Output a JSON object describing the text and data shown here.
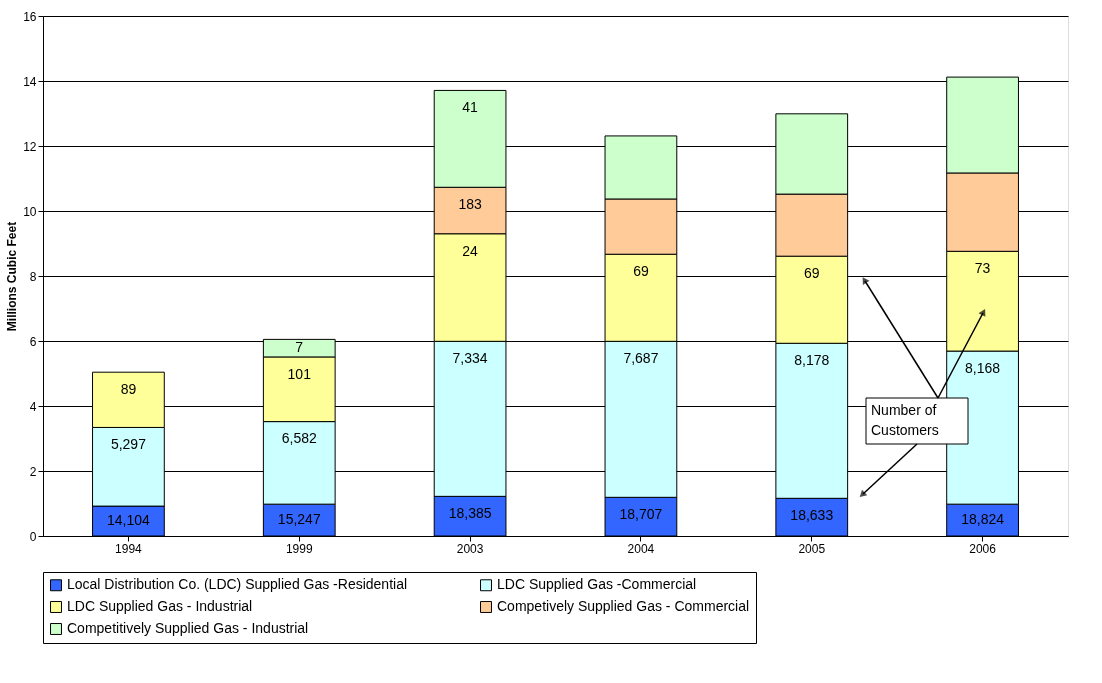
{
  "chart_data": {
    "type": "bar",
    "stacked": true,
    "ylabel": "Millions Cubic Feet",
    "categories": [
      "1994",
      "1999",
      "2003",
      "2004",
      "2005",
      "2006"
    ],
    "ylim": [
      0,
      16
    ],
    "yticks": [
      0,
      2,
      4,
      6,
      8,
      10,
      12,
      14,
      16
    ],
    "grid": "y",
    "legend": "bottom",
    "annotations": [
      "Number of Customers",
      {
        "text": "14,104",
        "x": "1994",
        "y": 0.92
      },
      {
        "text": "15,247",
        "x": "1999",
        "y": 0.98
      },
      {
        "text": "18,385",
        "x": "2003",
        "y": 1.22
      },
      {
        "text": "18,707",
        "x": "2004",
        "y": 1.19
      },
      {
        "text": "18,633",
        "x": "2005",
        "y": 1.16
      },
      {
        "text": "18,824",
        "x": "2006",
        "y": 0.98
      },
      {
        "text": "5,297",
        "x": "1994",
        "y": 3.34
      },
      {
        "text": "6,582",
        "x": "1999",
        "y": 3.52
      },
      {
        "text": "7,334",
        "x": "2003",
        "y": 5.99
      },
      {
        "text": "7,687",
        "x": "2004",
        "y": 5.99
      },
      {
        "text": "8,178",
        "x": "2005",
        "y": 5.93
      },
      {
        "text": "8,168",
        "x": "2006",
        "y": 5.69
      },
      {
        "text": "89",
        "x": "1994",
        "y": 5.04
      },
      {
        "text": "101",
        "x": "1999",
        "y": 5.51
      },
      {
        "text": "24",
        "x": "2003",
        "y": 9.3
      },
      {
        "text": "69",
        "x": "2004",
        "y": 8.67
      },
      {
        "text": "69",
        "x": "2005",
        "y": 8.61
      },
      {
        "text": "73",
        "x": "2006",
        "y": 8.76
      },
      {
        "text": "183",
        "x": "2003",
        "y": 10.73
      },
      {
        "text": "7",
        "x": "1999",
        "y": 6.05
      },
      {
        "text": "41",
        "x": "2003",
        "y": 13.71
      }
    ],
    "series": [
      {
        "name": "Local Distribution Co. (LDC) Supplied Gas -Residential",
        "color": "#3366ff",
        "values": [
          0.92,
          0.98,
          1.22,
          1.19,
          1.16,
          0.98
        ]
      },
      {
        "name": "LDC Supplied Gas -Commercial",
        "color": "#ccffff",
        "values": [
          2.42,
          2.54,
          4.77,
          4.8,
          4.77,
          4.71
        ]
      },
      {
        "name": "LDC Supplied Gas - Industrial",
        "color": "#ffff99",
        "values": [
          1.7,
          1.99,
          3.31,
          2.68,
          2.68,
          3.07
        ]
      },
      {
        "name": "Competively Supplied Gas - Commercial",
        "color": "#ffcc99",
        "values": [
          null,
          null,
          1.43,
          1.7,
          1.91,
          2.41
        ]
      },
      {
        "name": "Competitively Supplied Gas - Industrial",
        "color": "#ccffcc",
        "values": [
          null,
          0.54,
          2.98,
          1.94,
          2.47,
          2.95
        ]
      }
    ]
  }
}
